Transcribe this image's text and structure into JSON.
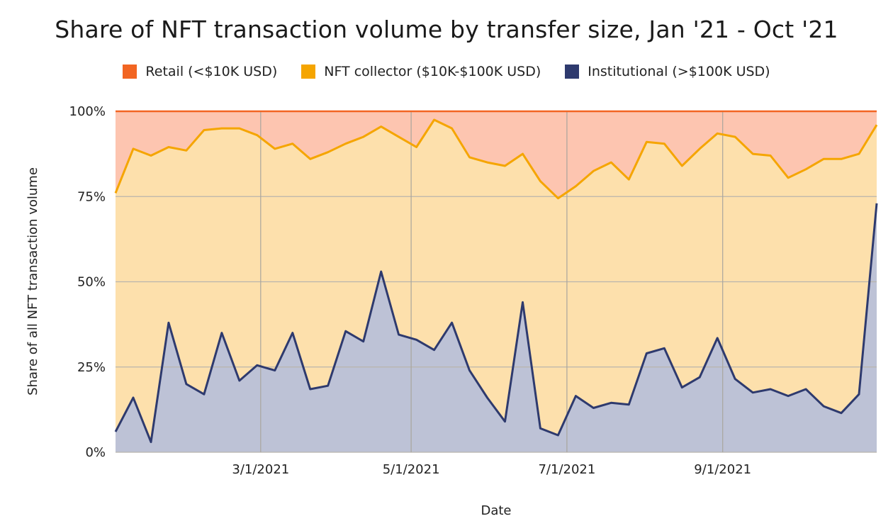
{
  "chart_data": {
    "type": "area",
    "title": "Share of NFT transaction volume by transfer size, Jan '21 - Oct '21",
    "xlabel": "Date",
    "ylabel": "Share of all NFT transaction volume",
    "x_ticks": [
      "3/1/2021",
      "5/1/2021",
      "7/1/2021",
      "9/1/2021"
    ],
    "y_ticks": [
      "100%",
      "75%",
      "50%",
      "25%",
      "0%"
    ],
    "ylim": [
      0,
      100
    ],
    "grid": true,
    "legend_position": "top-center",
    "series": [
      {
        "name": "Institutional (>$100K USD)",
        "color": "#2e3a6e",
        "fill": "#bdc2d6",
        "values": [
          6,
          16,
          3,
          38,
          20,
          17,
          35,
          21,
          25.5,
          24,
          35,
          18.5,
          19.5,
          35.5,
          32.5,
          53,
          34.5,
          33,
          30,
          38,
          24,
          16,
          9,
          44,
          7,
          5,
          16.5,
          13,
          14.5,
          14,
          29,
          30.5,
          19,
          22,
          33.5,
          21.5,
          17.5,
          18.5,
          16.5,
          18.5,
          13.5,
          11.5,
          17,
          73
        ]
      },
      {
        "name": "NFT collector ($10K-$100K USD)",
        "color": "#f5a500",
        "fill": "#fde0ac",
        "cumulative_values": [
          76,
          89,
          87,
          89.5,
          88.5,
          94.5,
          95,
          95,
          93,
          89,
          90.5,
          86,
          88,
          90.5,
          92.5,
          95.5,
          92.5,
          89.5,
          97.5,
          95,
          86.5,
          85,
          84,
          87.5,
          79.5,
          74.5,
          78,
          82.5,
          85,
          80,
          91,
          90.5,
          84,
          89,
          93.5,
          92.5,
          87.5,
          87,
          80.5,
          83,
          86,
          86,
          87.5,
          96
        ]
      },
      {
        "name": "Retail (<$10K USD)",
        "color": "#f26522",
        "fill": "#fdc5b0",
        "cumulative_values": [
          100,
          100,
          100,
          100,
          100,
          100,
          100,
          100,
          100,
          100,
          100,
          100,
          100,
          100,
          100,
          100,
          100,
          100,
          100,
          100,
          100,
          100,
          100,
          100,
          100,
          100,
          100,
          100,
          100,
          100,
          100,
          100,
          100,
          100,
          100,
          100,
          100,
          100,
          100,
          100,
          100,
          100,
          100,
          100
        ]
      }
    ],
    "legend": [
      {
        "label": "Retail (<$10K USD)",
        "color": "#f26522"
      },
      {
        "label": "NFT collector ($10K-$100K USD)",
        "color": "#f5a500"
      },
      {
        "label": "Institutional (>$100K USD)",
        "color": "#2e3a6e"
      }
    ]
  }
}
